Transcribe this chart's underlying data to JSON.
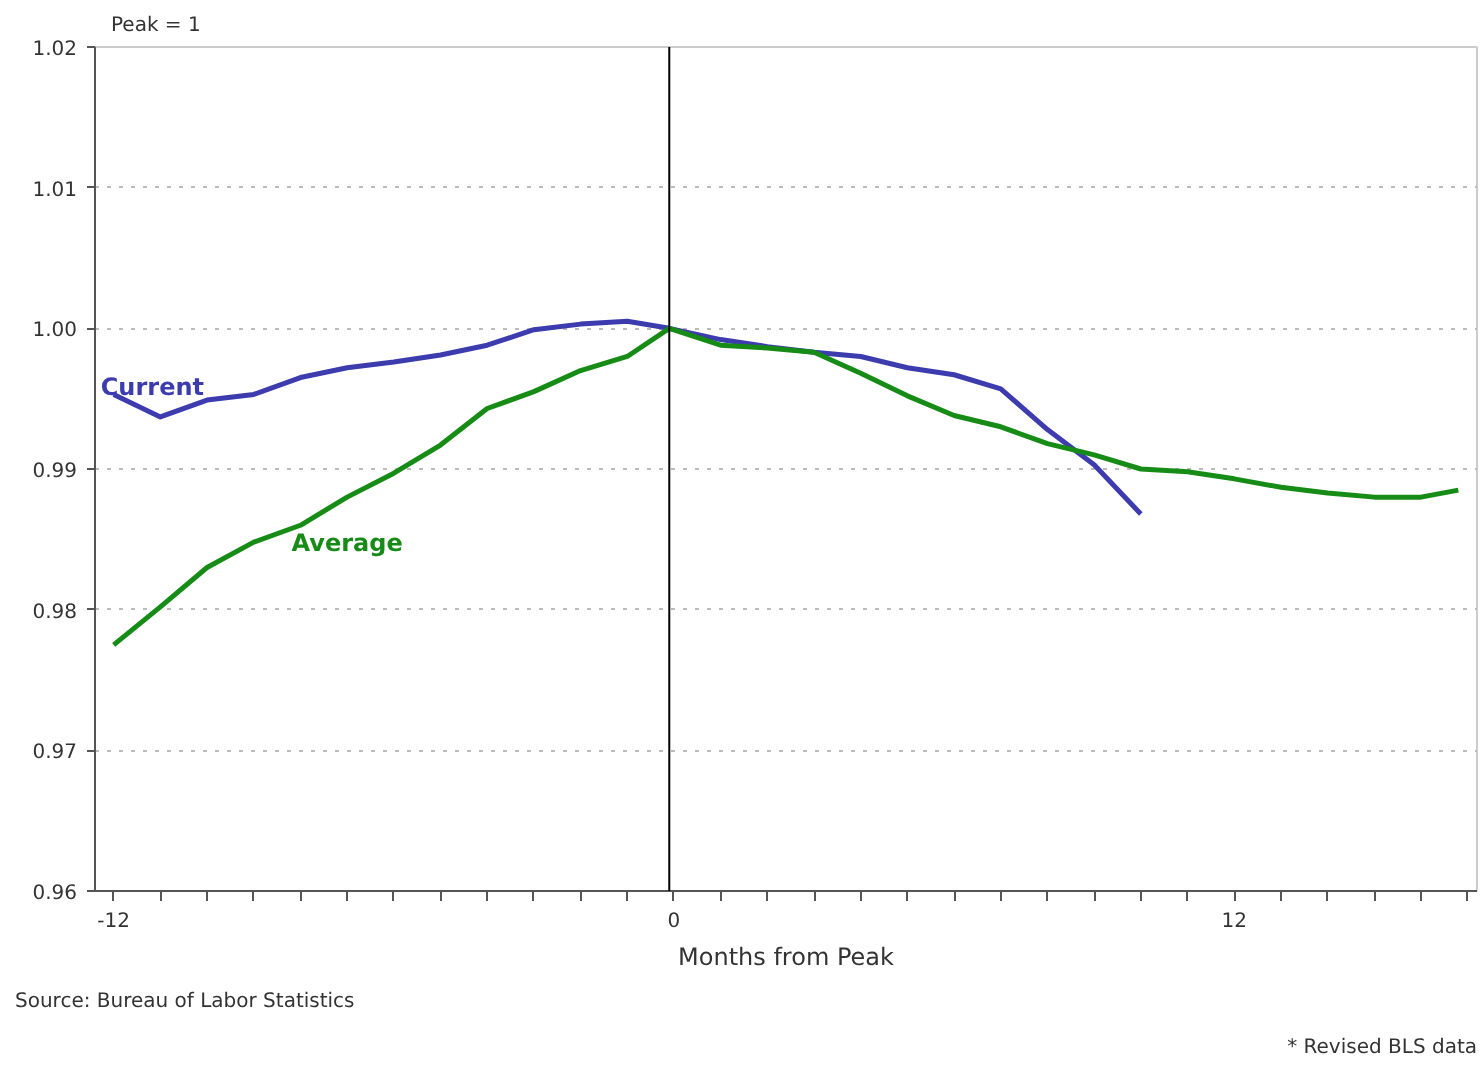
{
  "chart_data": {
    "type": "line",
    "ylabel": "Peak = 1",
    "xlabel": "Months from Peak",
    "annotations": [
      "Source: Bureau of Labor Statistics",
      "* Revised BLS data"
    ],
    "xlim": [
      -12.4,
      17.2
    ],
    "xticks": [
      -12,
      {
        "value": -11,
        "label": null
      },
      {
        "value": -10,
        "label": null
      },
      {
        "value": -9,
        "label": null
      },
      {
        "value": -8,
        "label": null
      },
      {
        "value": -7,
        "label": null
      },
      {
        "value": -6,
        "label": null
      },
      {
        "value": -5,
        "label": null
      },
      {
        "value": -4,
        "label": null
      },
      {
        "value": -3,
        "label": null
      },
      {
        "value": -2,
        "label": null
      },
      {
        "value": -1,
        "label": null
      },
      0,
      {
        "value": 1,
        "label": null
      },
      {
        "value": 2,
        "label": null
      },
      {
        "value": 3,
        "label": null
      },
      {
        "value": 4,
        "label": null
      },
      {
        "value": 5,
        "label": null
      },
      {
        "value": 6,
        "label": null
      },
      {
        "value": 7,
        "label": null
      },
      {
        "value": 8,
        "label": null
      },
      {
        "value": 9,
        "label": null
      },
      {
        "value": 10,
        "label": null
      },
      {
        "value": 11,
        "label": null
      },
      12,
      {
        "value": 13,
        "label": null
      },
      {
        "value": 14,
        "label": null
      },
      {
        "value": 15,
        "label": null
      },
      {
        "value": 16,
        "label": null
      },
      {
        "value": 17,
        "label": null
      }
    ],
    "ylim": [
      0.96,
      1.02
    ],
    "yticks": [
      0.96,
      0.97,
      0.98,
      0.99,
      {
        "value": 1.0,
        "label": "1.00"
      },
      1.01,
      1.02
    ],
    "grid": "y",
    "ref_lines": [
      {
        "axis": "x",
        "value": -0.1,
        "color": "#000000"
      }
    ],
    "series": [
      {
        "name": "Current",
        "color": "#3c3cae",
        "x": [
          -12,
          -11,
          -10,
          -9,
          -8,
          -7,
          -6,
          -5,
          -4,
          -3,
          -2,
          -1,
          -0.1,
          1,
          2,
          3,
          4,
          5,
          6,
          7,
          8,
          9,
          10
        ],
        "values": [
          0.9953,
          0.9937,
          0.9949,
          0.9953,
          0.9965,
          0.9972,
          0.9976,
          0.9981,
          0.9988,
          0.9999,
          1.0003,
          1.0005,
          1.0,
          0.9992,
          0.9987,
          0.9983,
          0.998,
          0.9972,
          0.9967,
          0.9957,
          0.9928,
          0.9903,
          0.9868
        ]
      },
      {
        "name": "Average",
        "color": "#168c16",
        "x": [
          -12,
          -11,
          -10,
          -9,
          -8,
          -7,
          -6,
          -5,
          -4,
          -3,
          -2,
          -1,
          -0.1,
          1,
          2,
          3,
          4,
          5,
          6,
          7,
          8,
          9,
          10,
          11,
          12,
          13,
          14,
          15,
          16,
          16.8
        ],
        "values": [
          0.9775,
          0.9802,
          0.983,
          0.9848,
          0.986,
          0.988,
          0.9897,
          0.9917,
          0.9943,
          0.9955,
          0.997,
          0.998,
          1.0,
          0.9988,
          0.9986,
          0.9983,
          0.9968,
          0.9952,
          0.9938,
          0.993,
          0.9918,
          0.991,
          0.99,
          0.9898,
          0.9893,
          0.9887,
          0.9883,
          0.988,
          0.988,
          0.9885
        ]
      }
    ]
  }
}
